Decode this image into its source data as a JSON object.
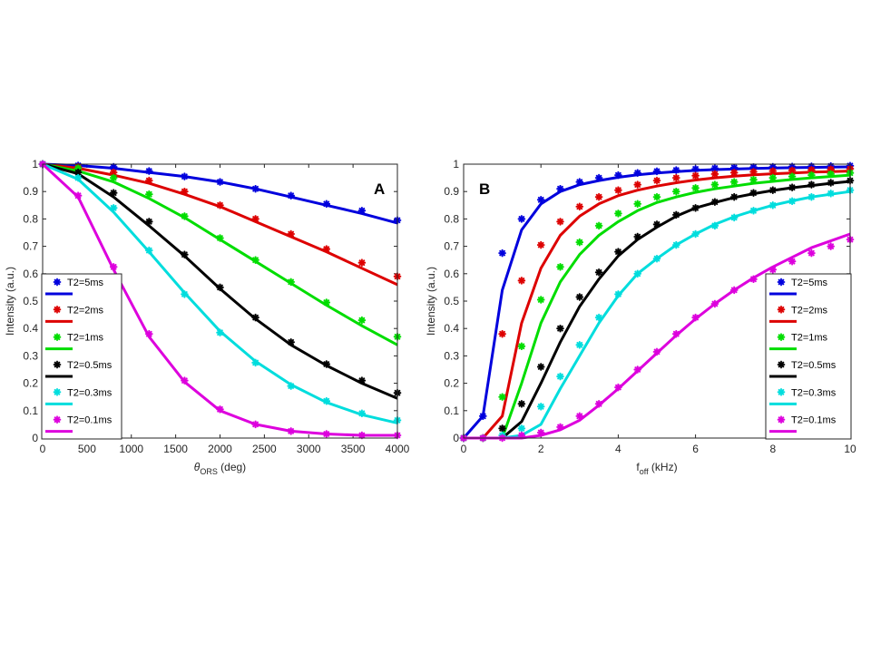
{
  "chart_data": [
    {
      "type": "line",
      "panel_label": "A",
      "title": "",
      "xlabel_main": "θ",
      "xlabel_sub": "ORS",
      "xlabel_unit": " (deg)",
      "ylabel": "Intensity (a.u.)",
      "xlim": [
        0,
        4000
      ],
      "ylim": [
        0,
        1
      ],
      "xticks": [
        0,
        500,
        1000,
        1500,
        2000,
        2500,
        3000,
        3500,
        4000
      ],
      "xtick_labels": [
        "0",
        "500",
        "1000",
        "1500",
        "2000",
        "2500",
        "3000",
        "3500",
        "4000"
      ],
      "yticks": [
        0,
        0.1,
        0.2,
        0.3,
        0.4,
        0.5,
        0.6,
        0.7,
        0.8,
        0.9,
        1
      ],
      "ytick_labels": [
        "0",
        "0.1",
        "0.2",
        "0.3",
        "0.4",
        "0.5",
        "0.6",
        "0.7",
        "0.8",
        "0.9",
        "1"
      ],
      "legend_position": "bottom-left",
      "x": [
        0,
        400,
        800,
        1200,
        1600,
        2000,
        2400,
        2800,
        3200,
        3600,
        4000
      ],
      "series": [
        {
          "name": "T2=5ms",
          "color": "#0000dd",
          "markers": [
            1,
            0.995,
            0.99,
            0.975,
            0.955,
            0.935,
            0.91,
            0.885,
            0.855,
            0.83,
            0.795
          ],
          "fit": [
            1,
            0.995,
            0.985,
            0.97,
            0.955,
            0.935,
            0.91,
            0.88,
            0.85,
            0.82,
            0.785
          ]
        },
        {
          "name": "T2=2ms",
          "color": "#dd0000",
          "markers": [
            1,
            0.99,
            0.97,
            0.94,
            0.9,
            0.85,
            0.8,
            0.745,
            0.69,
            0.64,
            0.59
          ],
          "fit": [
            1,
            0.985,
            0.96,
            0.93,
            0.89,
            0.845,
            0.79,
            0.735,
            0.68,
            0.62,
            0.56
          ]
        },
        {
          "name": "T2=1ms",
          "color": "#00dd00",
          "markers": [
            1,
            0.985,
            0.95,
            0.89,
            0.81,
            0.73,
            0.65,
            0.57,
            0.495,
            0.43,
            0.37
          ],
          "fit": [
            1,
            0.975,
            0.935,
            0.875,
            0.805,
            0.725,
            0.645,
            0.565,
            0.485,
            0.41,
            0.34
          ]
        },
        {
          "name": "T2=0.5ms",
          "color": "#000000",
          "markers": [
            1,
            0.97,
            0.895,
            0.79,
            0.67,
            0.55,
            0.44,
            0.35,
            0.27,
            0.21,
            0.165
          ],
          "fit": [
            1,
            0.965,
            0.88,
            0.775,
            0.665,
            0.545,
            0.435,
            0.34,
            0.265,
            0.2,
            0.145
          ]
        },
        {
          "name": "T2=0.3ms",
          "color": "#00dddd",
          "markers": [
            1,
            0.95,
            0.84,
            0.685,
            0.525,
            0.385,
            0.275,
            0.19,
            0.135,
            0.09,
            0.065
          ],
          "fit": [
            1,
            0.945,
            0.825,
            0.68,
            0.53,
            0.39,
            0.28,
            0.195,
            0.13,
            0.085,
            0.055
          ]
        },
        {
          "name": "T2=0.1ms",
          "color": "#dd00dd",
          "markers": [
            1,
            0.885,
            0.625,
            0.38,
            0.21,
            0.105,
            0.05,
            0.025,
            0.015,
            0.01,
            0.01
          ],
          "fit": [
            1,
            0.88,
            0.615,
            0.37,
            0.205,
            0.1,
            0.05,
            0.025,
            0.015,
            0.01,
            0.01
          ]
        }
      ]
    },
    {
      "type": "line",
      "panel_label": "B",
      "title": "",
      "xlabel_main": "f",
      "xlabel_sub": "off",
      "xlabel_unit": " (kHz)",
      "ylabel": "Intensity (a.u.)",
      "xlim": [
        0,
        10
      ],
      "ylim": [
        0,
        1
      ],
      "xticks": [
        0,
        2,
        4,
        6,
        8,
        10
      ],
      "xtick_labels": [
        "0",
        "2",
        "4",
        "6",
        "8",
        "10"
      ],
      "yticks": [
        0,
        0.1,
        0.2,
        0.3,
        0.4,
        0.5,
        0.6,
        0.7,
        0.8,
        0.9,
        1
      ],
      "ytick_labels": [
        "0",
        "0.1",
        "0.2",
        "0.3",
        "0.4",
        "0.5",
        "0.6",
        "0.7",
        "0.8",
        "0.9",
        "1"
      ],
      "legend_position": "bottom-right",
      "x_markers": [
        0,
        0.5,
        1,
        1.5,
        2,
        2.5,
        3,
        3.5,
        4,
        4.5,
        5,
        5.5,
        6,
        6.5,
        7,
        7.5,
        8,
        8.5,
        9,
        9.5,
        10
      ],
      "x_fit": [
        0,
        0.5,
        1,
        1.5,
        2,
        2.5,
        3,
        3.5,
        4,
        4.5,
        5,
        5.5,
        6,
        6.5,
        7,
        7.5,
        8,
        8.5,
        9,
        9.5,
        10
      ],
      "series": [
        {
          "name": "T2=5ms",
          "color": "#0000dd",
          "markers": [
            0,
            0.08,
            0.675,
            0.8,
            0.87,
            0.91,
            0.935,
            0.95,
            0.96,
            0.968,
            0.974,
            0.978,
            0.982,
            0.985,
            0.987,
            0.989,
            0.99,
            0.991,
            0.992,
            0.993,
            0.994
          ],
          "fit": [
            0,
            0.08,
            0.54,
            0.76,
            0.855,
            0.9,
            0.925,
            0.94,
            0.952,
            0.961,
            0.968,
            0.973,
            0.977,
            0.98,
            0.982,
            0.984,
            0.986,
            0.987,
            0.988,
            0.989,
            0.99
          ]
        },
        {
          "name": "T2=2ms",
          "color": "#dd0000",
          "markers": [
            0,
            0,
            0.38,
            0.575,
            0.705,
            0.79,
            0.845,
            0.88,
            0.905,
            0.925,
            0.94,
            0.95,
            0.958,
            0.964,
            0.969,
            0.972,
            0.975,
            0.977,
            0.979,
            0.981,
            0.983
          ],
          "fit": [
            0,
            0,
            0.08,
            0.42,
            0.62,
            0.74,
            0.81,
            0.855,
            0.885,
            0.905,
            0.92,
            0.932,
            0.942,
            0.95,
            0.956,
            0.961,
            0.965,
            0.968,
            0.971,
            0.973,
            0.975
          ]
        },
        {
          "name": "T2=1ms",
          "color": "#00dd00",
          "markers": [
            0,
            0,
            0.15,
            0.335,
            0.505,
            0.625,
            0.715,
            0.775,
            0.82,
            0.855,
            0.88,
            0.9,
            0.913,
            0.925,
            0.935,
            0.943,
            0.95,
            0.955,
            0.96,
            0.964,
            0.968
          ],
          "fit": [
            0,
            0,
            0,
            0.2,
            0.42,
            0.57,
            0.67,
            0.74,
            0.79,
            0.83,
            0.86,
            0.88,
            0.897,
            0.91,
            0.92,
            0.93,
            0.937,
            0.944,
            0.95,
            0.955,
            0.96
          ]
        },
        {
          "name": "T2=0.5ms",
          "color": "#000000",
          "markers": [
            0,
            0,
            0.035,
            0.125,
            0.26,
            0.4,
            0.515,
            0.605,
            0.68,
            0.735,
            0.78,
            0.815,
            0.84,
            0.862,
            0.88,
            0.895,
            0.905,
            0.915,
            0.925,
            0.932,
            0.94
          ],
          "fit": [
            0,
            0,
            0,
            0.06,
            0.2,
            0.35,
            0.48,
            0.58,
            0.665,
            0.725,
            0.77,
            0.81,
            0.84,
            0.86,
            0.878,
            0.892,
            0.904,
            0.914,
            0.922,
            0.93,
            0.937
          ]
        },
        {
          "name": "T2=0.3ms",
          "color": "#00dddd",
          "markers": [
            0,
            0,
            0.01,
            0.035,
            0.115,
            0.225,
            0.34,
            0.44,
            0.525,
            0.6,
            0.655,
            0.705,
            0.745,
            0.775,
            0.805,
            0.83,
            0.85,
            0.865,
            0.88,
            0.893,
            0.905
          ],
          "fit": [
            0,
            0,
            0,
            0.01,
            0.05,
            0.18,
            0.3,
            0.42,
            0.52,
            0.6,
            0.655,
            0.705,
            0.745,
            0.78,
            0.808,
            0.83,
            0.85,
            0.866,
            0.88,
            0.89,
            0.9
          ]
        },
        {
          "name": "T2=0.1ms",
          "color": "#dd00dd",
          "markers": [
            0,
            0,
            0,
            0.01,
            0.02,
            0.04,
            0.08,
            0.125,
            0.185,
            0.25,
            0.315,
            0.38,
            0.44,
            0.49,
            0.54,
            0.58,
            0.615,
            0.645,
            0.675,
            0.7,
            0.725
          ],
          "fit": [
            0,
            0,
            0,
            0,
            0.01,
            0.03,
            0.065,
            0.12,
            0.18,
            0.245,
            0.31,
            0.375,
            0.435,
            0.49,
            0.54,
            0.585,
            0.625,
            0.66,
            0.695,
            0.72,
            0.745
          ]
        }
      ]
    }
  ]
}
